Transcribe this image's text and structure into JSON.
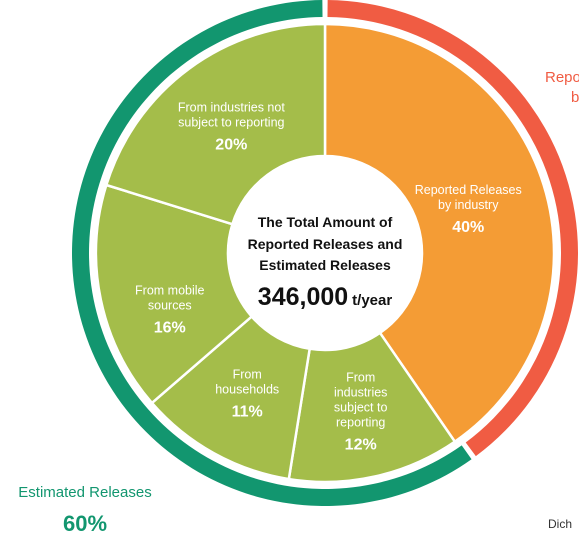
{
  "chart_data": {
    "type": "pie",
    "center": {
      "title_lines": [
        "The Total Amount of",
        "Reported Releases and",
        "Estimated Releases"
      ],
      "total_value": "346,000",
      "total_unit": "t/year"
    },
    "slices": [
      {
        "label_lines": [
          "Reported Releases",
          "by industry"
        ],
        "value": 40,
        "display": "40%",
        "color": "#f49c35"
      },
      {
        "label_lines": [
          "From",
          "industries",
          "subject to",
          "reporting"
        ],
        "value": 12,
        "display": "12%",
        "color": "#a4bd4a"
      },
      {
        "label_lines": [
          "From",
          "households"
        ],
        "value": 11,
        "display": "11%",
        "color": "#a4bd4a"
      },
      {
        "label_lines": [
          "From mobile",
          "sources"
        ],
        "value": 16,
        "display": "16%",
        "color": "#a4bd4a"
      },
      {
        "label_lines": [
          "From industries not",
          "subject to reporting"
        ],
        "value": 20,
        "display": "20%",
        "color": "#a4bd4a"
      }
    ],
    "groups": [
      {
        "name_lines": [
          "Reported Releases",
          "by industry"
        ],
        "value": 40,
        "display": "40%",
        "color": "#f05c43"
      },
      {
        "name_lines": [
          "Estimated Releases"
        ],
        "value": 60,
        "display": "60%",
        "color": "#12966f"
      }
    ],
    "footnote": "Dich"
  }
}
